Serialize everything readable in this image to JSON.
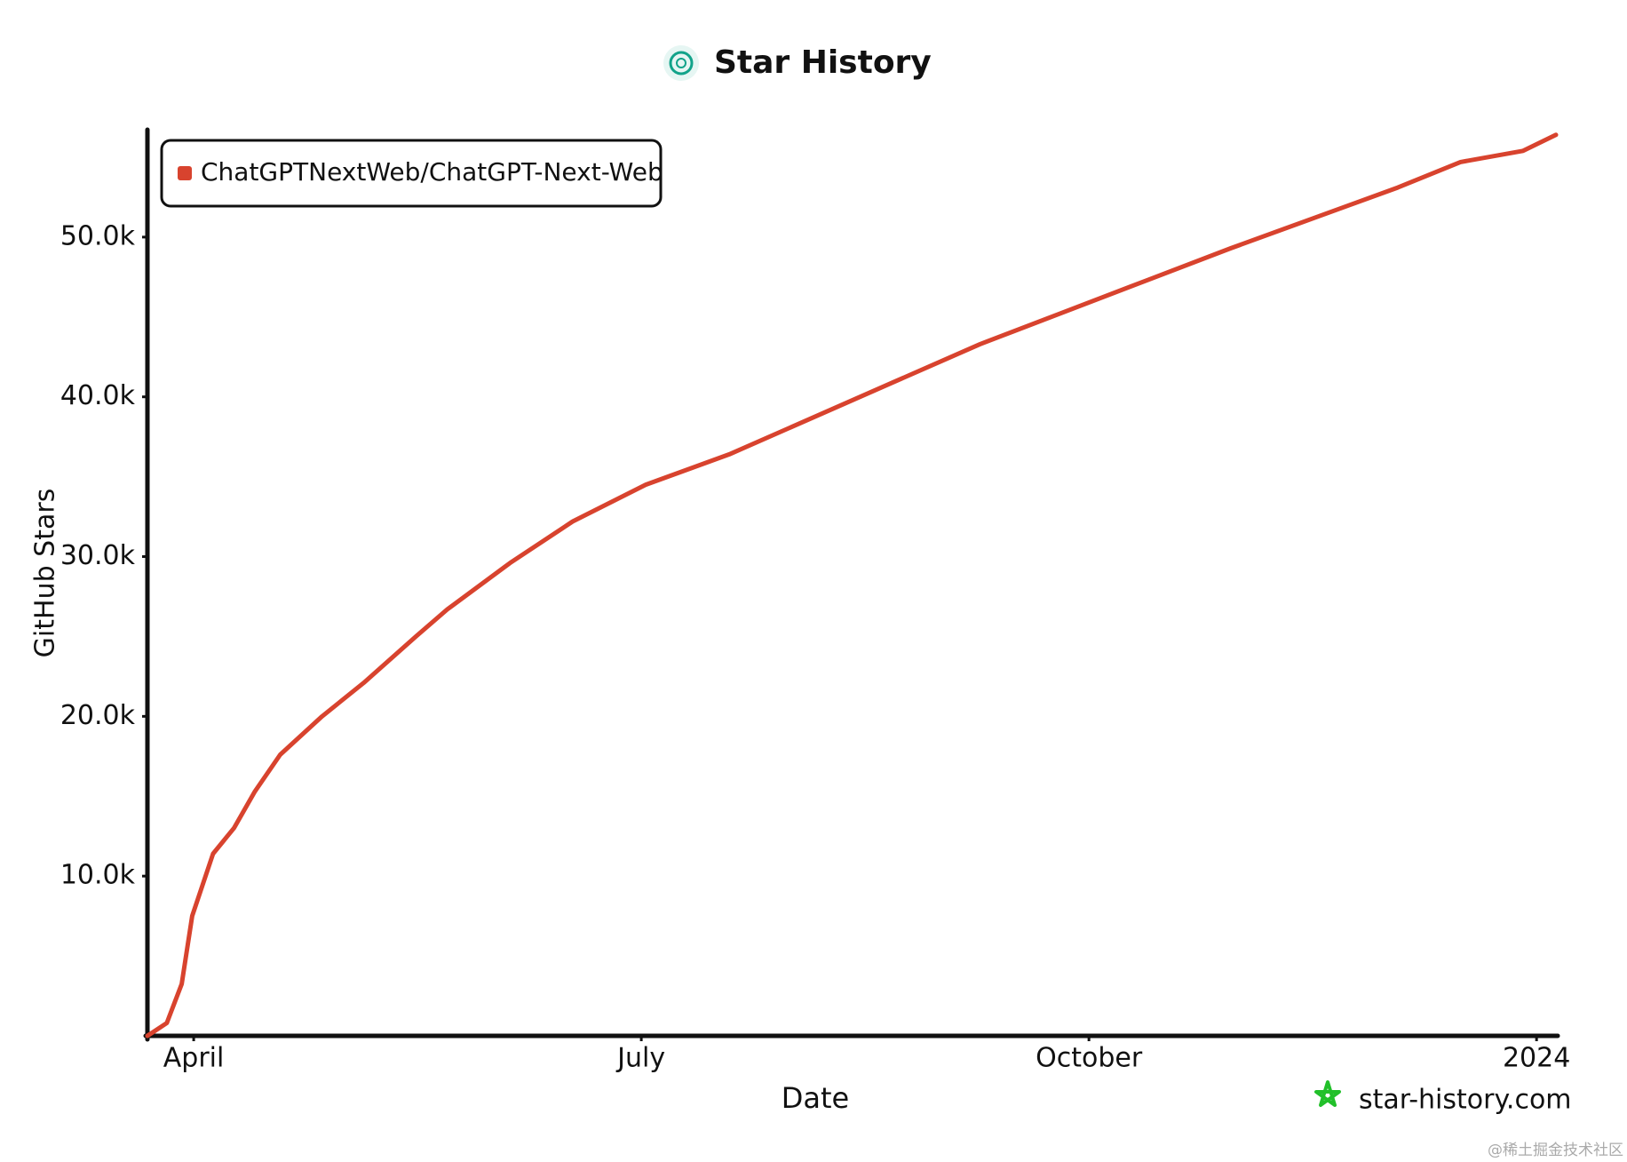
{
  "chart_data": {
    "type": "line",
    "title": "Star History",
    "x_label": "Date",
    "y_label": "GitHub Stars",
    "x": [
      3.69,
      3.82,
      3.92,
      3.99,
      4.13,
      4.27,
      4.41,
      4.58,
      4.86,
      5.14,
      5.49,
      5.7,
      6.12,
      6.54,
      7.03,
      7.59,
      8.15,
      8.71,
      9.27,
      9.83,
      10.39,
      10.95,
      11.51,
      12.07,
      12.49,
      12.91,
      13.13
    ],
    "series": [
      {
        "name": "ChatGPTNextWeb/ChatGPT-Next-Web",
        "color": "#d8432e",
        "values": [
          0,
          800,
          3250,
          7500,
          11400,
          13000,
          15300,
          17600,
          20000,
          22100,
          25000,
          26700,
          29600,
          32200,
          34500,
          36400,
          38700,
          41000,
          43300,
          45300,
          47300,
          49300,
          51200,
          53100,
          54700,
          55400,
          56400
        ]
      }
    ],
    "xlim": [
      3.69,
      13.13
    ],
    "xticks": [
      {
        "value": 4,
        "label": "April"
      },
      {
        "value": 7,
        "label": "July"
      },
      {
        "value": 10,
        "label": "October"
      },
      {
        "value": 13,
        "label": "2024"
      }
    ],
    "ylim": [
      0,
      56500
    ],
    "yticks": [
      {
        "value": 10000,
        "label": "10.0k"
      },
      {
        "value": 20000,
        "label": "20.0k"
      },
      {
        "value": 30000,
        "label": "30.0k"
      },
      {
        "value": 40000,
        "label": "40.0k"
      },
      {
        "value": 50000,
        "label": "50.0k"
      }
    ],
    "legend": "upper left",
    "grid": false,
    "watermark": "star-history.com",
    "credit": "@稀土掘金技术社区"
  }
}
